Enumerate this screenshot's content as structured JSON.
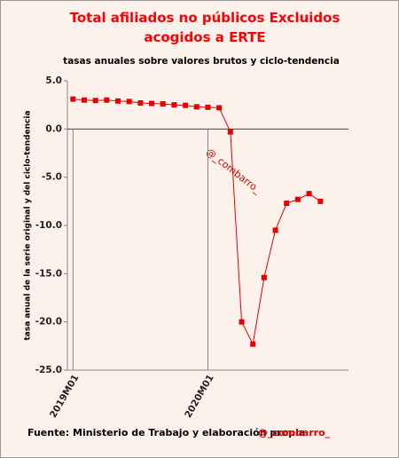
{
  "chart_data": {
    "type": "line",
    "title": "Total afiliados  no públicos  Excluidos  acogidos a ERTE",
    "subtitle": "tasas anuales sobre valores brutos y ciclo-tendencia",
    "y_label": "tasa anual de la serie original y del ciclo-tendencia",
    "annotation": "@_combarro_",
    "source": "Fuente: Ministerio de Trabajo y elaboración propia",
    "source_handle": "@_combarro_",
    "categories": [
      "2019M01",
      null,
      null,
      null,
      null,
      null,
      null,
      null,
      null,
      null,
      null,
      null,
      "2020M01",
      null,
      null,
      null,
      null,
      null,
      null,
      null,
      null,
      null,
      null
    ],
    "series": [
      {
        "name": "tasa anual",
        "color": "#e60000",
        "values": [
          3.1,
          3.0,
          2.95,
          3.0,
          2.9,
          2.85,
          2.7,
          2.65,
          2.6,
          2.5,
          2.45,
          2.3,
          2.25,
          2.2,
          -0.3,
          -20.0,
          -22.3,
          -15.4,
          -10.5,
          -7.7,
          -7.3,
          -6.7,
          -7.5
        ]
      }
    ],
    "ylim": [
      -25,
      5
    ],
    "yticks": [
      {
        "value": -25,
        "label": "-25.0"
      },
      {
        "value": -20,
        "label": "-20.0"
      },
      {
        "value": -15,
        "label": "-15.0"
      },
      {
        "value": -10,
        "label": "-10.0"
      },
      {
        "value": -5,
        "label": "-5.0"
      },
      {
        "value": 0,
        "label": "0.0"
      },
      {
        "value": 5,
        "label": "5.0"
      }
    ]
  }
}
